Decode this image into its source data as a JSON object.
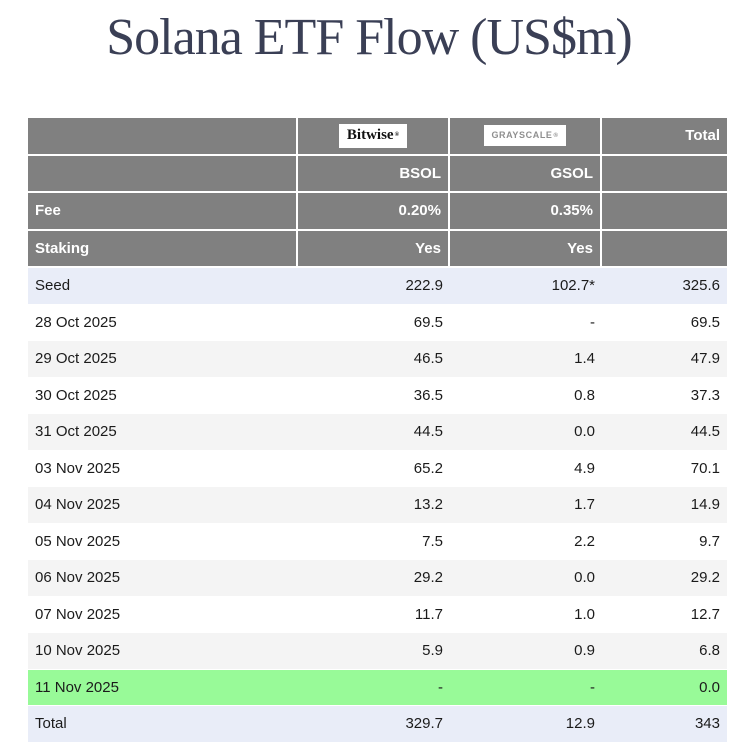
{
  "title": "Solana ETF Flow (US$m)",
  "labels": {
    "total": "Total",
    "fee": "Fee",
    "staking": "Staking"
  },
  "providers": {
    "bitwise": {
      "logo_text": "Bitwise",
      "trademark": "®",
      "ticker": "BSOL",
      "fee": "0.20%",
      "staking": "Yes"
    },
    "grayscale": {
      "logo_text": "GRAYSCALE",
      "trademark": "®",
      "ticker": "GSOL",
      "fee": "0.35%",
      "staking": "Yes"
    }
  },
  "chart_data": {
    "type": "table",
    "title": "Solana ETF Flow (US$m)",
    "columns": [
      "",
      "BSOL",
      "GSOL",
      "Total"
    ],
    "column_meta": {
      "BSOL": {
        "issuer": "Bitwise",
        "fee": "0.20%",
        "staking": "Yes"
      },
      "GSOL": {
        "issuer": "Grayscale",
        "fee": "0.35%",
        "staking": "Yes"
      }
    },
    "rows": [
      {
        "label": "Seed",
        "bsol": "222.9",
        "gsol": "102.7*",
        "total": "325.6",
        "bg": "accent"
      },
      {
        "label": "28 Oct 2025",
        "bsol": "69.5",
        "gsol": "-",
        "total": "69.5",
        "bg": "plain"
      },
      {
        "label": "29 Oct 2025",
        "bsol": "46.5",
        "gsol": "1.4",
        "total": "47.9",
        "bg": "stripe"
      },
      {
        "label": "30 Oct 2025",
        "bsol": "36.5",
        "gsol": "0.8",
        "total": "37.3",
        "bg": "plain"
      },
      {
        "label": "31 Oct 2025",
        "bsol": "44.5",
        "gsol": "0.0",
        "total": "44.5",
        "bg": "stripe"
      },
      {
        "label": "03 Nov 2025",
        "bsol": "65.2",
        "gsol": "4.9",
        "total": "70.1",
        "bg": "plain"
      },
      {
        "label": "04 Nov 2025",
        "bsol": "13.2",
        "gsol": "1.7",
        "total": "14.9",
        "bg": "stripe"
      },
      {
        "label": "05 Nov 2025",
        "bsol": "7.5",
        "gsol": "2.2",
        "total": "9.7",
        "bg": "plain"
      },
      {
        "label": "06 Nov 2025",
        "bsol": "29.2",
        "gsol": "0.0",
        "total": "29.2",
        "bg": "stripe"
      },
      {
        "label": "07 Nov 2025",
        "bsol": "11.7",
        "gsol": "1.0",
        "total": "12.7",
        "bg": "plain"
      },
      {
        "label": "10 Nov 2025",
        "bsol": "5.9",
        "gsol": "0.9",
        "total": "6.8",
        "bg": "stripe"
      },
      {
        "label": "11 Nov 2025",
        "bsol": "-",
        "gsol": "-",
        "total": "0.0",
        "bg": "today"
      },
      {
        "label": "Total",
        "bsol": "329.7",
        "gsol": "12.9",
        "total": "343",
        "bg": "accent"
      }
    ]
  },
  "colors": {
    "header_bg": "#808080",
    "accent_row_bg": "#e9edf8",
    "stripe_row_bg": "#f4f4f4",
    "today_row_bg": "#98fa98",
    "title_text": "#3a3f55",
    "grayscale_logo_text": "#8f8f8f"
  }
}
